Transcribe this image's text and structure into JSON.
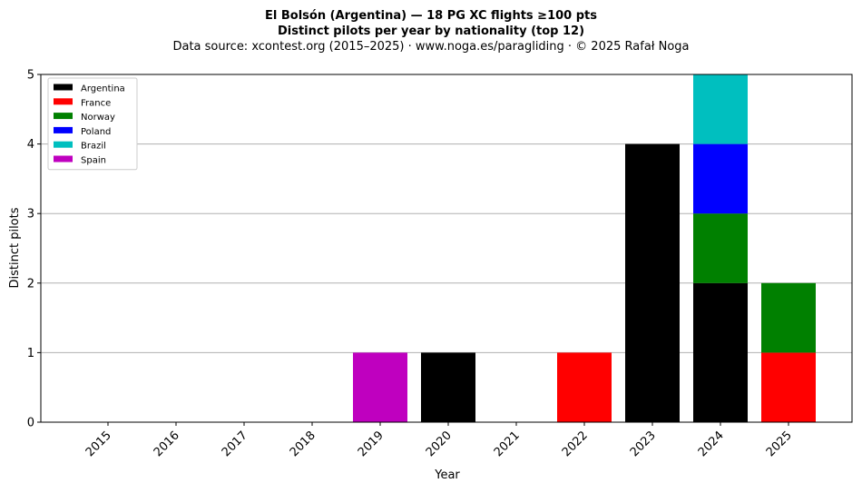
{
  "title_line1": "El Bolsón (Argentina)  —  18 PG XC flights ≥100 pts",
  "title_line2": "Distinct pilots per year by nationality (top 12)",
  "subtitle": "Data source: xcontest.org (2015–2025)  ·  www.noga.es/paragliding  ·  © 2025 Rafał Noga",
  "chart_data": {
    "type": "bar",
    "stacked": true,
    "categories": [
      "2015",
      "2016",
      "2017",
      "2018",
      "2019",
      "2020",
      "2021",
      "2022",
      "2023",
      "2024",
      "2025"
    ],
    "series": [
      {
        "name": "Argentina",
        "color": "#000000",
        "values": [
          0,
          0,
          0,
          0,
          0,
          1,
          0,
          0,
          4,
          2,
          0
        ]
      },
      {
        "name": "France",
        "color": "#ff0000",
        "values": [
          0,
          0,
          0,
          0,
          0,
          0,
          0,
          1,
          0,
          0,
          1
        ]
      },
      {
        "name": "Norway",
        "color": "#008000",
        "values": [
          0,
          0,
          0,
          0,
          0,
          0,
          0,
          0,
          0,
          1,
          1
        ]
      },
      {
        "name": "Poland",
        "color": "#0000ff",
        "values": [
          0,
          0,
          0,
          0,
          0,
          0,
          0,
          0,
          0,
          1,
          0
        ]
      },
      {
        "name": "Brazil",
        "color": "#00bfbf",
        "values": [
          0,
          0,
          0,
          0,
          0,
          0,
          0,
          0,
          0,
          1,
          0
        ]
      },
      {
        "name": "Spain",
        "color": "#bf00bf",
        "values": [
          0,
          0,
          0,
          0,
          1,
          0,
          0,
          0,
          0,
          0,
          0
        ]
      }
    ],
    "xlabel": "Year",
    "ylabel": "Distinct pilots",
    "ylim": [
      0,
      5
    ],
    "yticks": [
      "0",
      "1",
      "2",
      "3",
      "4",
      "5"
    ],
    "grid": "horizontal",
    "legend_position": "top-left"
  }
}
